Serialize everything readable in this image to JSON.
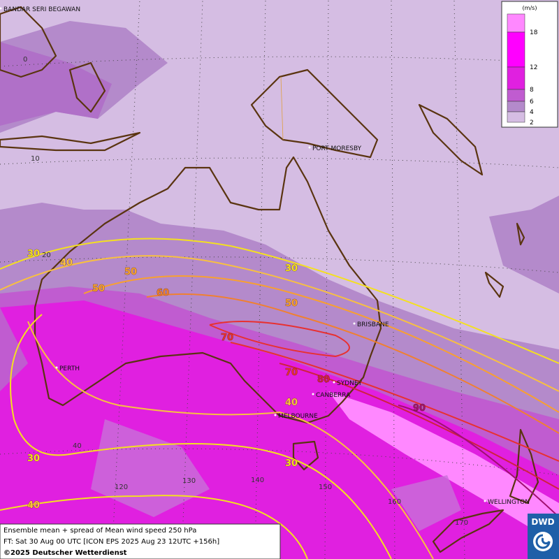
{
  "map": {
    "cities": [
      {
        "label": "BANDAR SERI BEGAWAN"
      },
      {
        "label": "PORT MORESBY"
      },
      {
        "label": "BRISBANE"
      },
      {
        "label": "SYDNEY"
      },
      {
        "label": "CANBERRA"
      },
      {
        "label": "MELBOURNE"
      },
      {
        "label": "PERTH"
      },
      {
        "label": "WELLINGTON"
      }
    ],
    "grid_labels": [
      "0",
      "10",
      "20",
      "40",
      "120",
      "130",
      "140",
      "150",
      "160",
      "170"
    ],
    "contour_labels": [
      {
        "label": "30",
        "color": "#f4e020"
      },
      {
        "label": "40",
        "color": "#f8c040"
      },
      {
        "label": "50",
        "color": "#f8a030"
      },
      {
        "label": "50",
        "color": "#f8a030"
      },
      {
        "label": "60",
        "color": "#f08030"
      },
      {
        "label": "30",
        "color": "#f4e020"
      },
      {
        "label": "50",
        "color": "#f8a030"
      },
      {
        "label": "70",
        "color": "#e83030"
      },
      {
        "label": "70",
        "color": "#e83030"
      },
      {
        "label": "80",
        "color": "#d02040"
      },
      {
        "label": "90",
        "color": "#a01070"
      },
      {
        "label": "40",
        "color": "#f8c040"
      },
      {
        "label": "30",
        "color": "#f4e020"
      },
      {
        "label": "30",
        "color": "#f4e020"
      },
      {
        "label": "40",
        "color": "#f8c040"
      }
    ],
    "legend": {
      "unit": "(m/s)",
      "ticks": [
        18,
        12,
        8,
        6,
        4,
        2
      ]
    },
    "footer": [
      "Ensemble mean + spread of Mean wind speed 250 hPa",
      "FT: Sat 30 Aug 00 UTC [ICON EPS 2025 Aug 23 12UTC +156h]",
      "©2025 Deutscher Wetterdienst"
    ],
    "logo": "DWD"
  }
}
